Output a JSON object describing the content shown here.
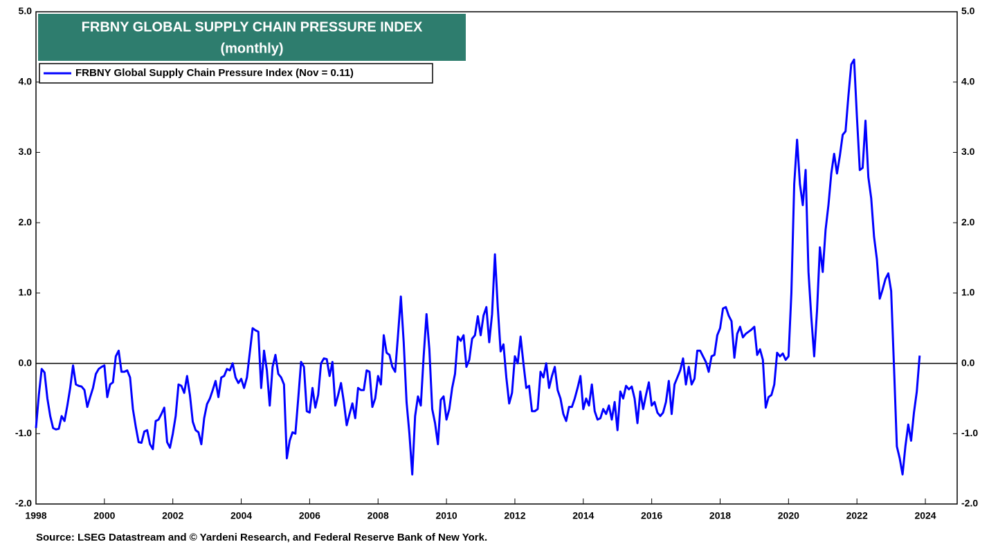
{
  "chart_data": {
    "type": "line",
    "title": "FRBNY GLOBAL SUPPLY CHAIN PRESSURE INDEX",
    "subtitle": "(monthly)",
    "source": "Source: LSEG Datastream and © Yardeni Research, and Federal Reserve Bank of New York.",
    "legend": "upper left",
    "xlim": [
      1998,
      2024.93
    ],
    "xticks": [
      1998,
      2000,
      2002,
      2004,
      2006,
      2008,
      2010,
      2012,
      2014,
      2016,
      2018,
      2020,
      2022,
      2024
    ],
    "ylim": [
      -2,
      5
    ],
    "yticks": [
      {
        "value": -2,
        "label": "-2.0"
      },
      {
        "value": -1,
        "label": "-1.0"
      },
      {
        "value": 0,
        "label": "0.0"
      },
      {
        "value": 1,
        "label": "1.0"
      },
      {
        "value": 2,
        "label": "2.0"
      },
      {
        "value": 3,
        "label": "3.0"
      },
      {
        "value": 4,
        "label": "4.0"
      },
      {
        "value": 5,
        "label": "5.0"
      }
    ],
    "y2lim": [
      -2,
      5
    ],
    "y2ticks": [
      {
        "value": -2,
        "label": "-2.0"
      },
      {
        "value": -1,
        "label": "-1.0"
      },
      {
        "value": 0,
        "label": "0.0"
      },
      {
        "value": 1,
        "label": "1.0"
      },
      {
        "value": 2,
        "label": "2.0"
      },
      {
        "value": 3,
        "label": "3.0"
      },
      {
        "value": 4,
        "label": "4.0"
      },
      {
        "value": 5,
        "label": "5.0"
      }
    ],
    "x": [
      "1998-01",
      "1998-02",
      "1998-03",
      "1998-04",
      "1998-05",
      "1998-06",
      "1998-07",
      "1998-08",
      "1998-09",
      "1998-10",
      "1998-11",
      "1998-12",
      "1999-01",
      "1999-02",
      "1999-03",
      "1999-04",
      "1999-05",
      "1999-06",
      "1999-07",
      "1999-08",
      "1999-09",
      "1999-10",
      "1999-11",
      "1999-12",
      "2000-01",
      "2000-02",
      "2000-03",
      "2000-04",
      "2000-05",
      "2000-06",
      "2000-07",
      "2000-08",
      "2000-09",
      "2000-10",
      "2000-11",
      "2000-12",
      "2001-01",
      "2001-02",
      "2001-03",
      "2001-04",
      "2001-05",
      "2001-06",
      "2001-07",
      "2001-08",
      "2001-09",
      "2001-10",
      "2001-11",
      "2001-12",
      "2002-01",
      "2002-02",
      "2002-03",
      "2002-04",
      "2002-05",
      "2002-06",
      "2002-07",
      "2002-08",
      "2002-09",
      "2002-10",
      "2002-11",
      "2002-12",
      "2003-01",
      "2003-02",
      "2003-03",
      "2003-04",
      "2003-05",
      "2003-06",
      "2003-07",
      "2003-08",
      "2003-09",
      "2003-10",
      "2003-11",
      "2003-12",
      "2004-01",
      "2004-02",
      "2004-03",
      "2004-04",
      "2004-05",
      "2004-06",
      "2004-07",
      "2004-08",
      "2004-09",
      "2004-10",
      "2004-11",
      "2004-12",
      "2005-01",
      "2005-02",
      "2005-03",
      "2005-04",
      "2005-05",
      "2005-06",
      "2005-07",
      "2005-08",
      "2005-09",
      "2005-10",
      "2005-11",
      "2005-12",
      "2006-01",
      "2006-02",
      "2006-03",
      "2006-04",
      "2006-05",
      "2006-06",
      "2006-07",
      "2006-08",
      "2006-09",
      "2006-10",
      "2006-11",
      "2006-12",
      "2007-01",
      "2007-02",
      "2007-03",
      "2007-04",
      "2007-05",
      "2007-06",
      "2007-07",
      "2007-08",
      "2007-09",
      "2007-10",
      "2007-11",
      "2007-12",
      "2008-01",
      "2008-02",
      "2008-03",
      "2008-04",
      "2008-05",
      "2008-06",
      "2008-07",
      "2008-08",
      "2008-09",
      "2008-10",
      "2008-11",
      "2008-12",
      "2009-01",
      "2009-02",
      "2009-03",
      "2009-04",
      "2009-05",
      "2009-06",
      "2009-07",
      "2009-08",
      "2009-09",
      "2009-10",
      "2009-11",
      "2009-12",
      "2010-01",
      "2010-02",
      "2010-03",
      "2010-04",
      "2010-05",
      "2010-06",
      "2010-07",
      "2010-08",
      "2010-09",
      "2010-10",
      "2010-11",
      "2010-12",
      "2011-01",
      "2011-02",
      "2011-03",
      "2011-04",
      "2011-05",
      "2011-06",
      "2011-07",
      "2011-08",
      "2011-09",
      "2011-10",
      "2011-11",
      "2011-12",
      "2012-01",
      "2012-02",
      "2012-03",
      "2012-04",
      "2012-05",
      "2012-06",
      "2012-07",
      "2012-08",
      "2012-09",
      "2012-10",
      "2012-11",
      "2012-12",
      "2013-01",
      "2013-02",
      "2013-03",
      "2013-04",
      "2013-05",
      "2013-06",
      "2013-07",
      "2013-08",
      "2013-09",
      "2013-10",
      "2013-11",
      "2013-12",
      "2014-01",
      "2014-02",
      "2014-03",
      "2014-04",
      "2014-05",
      "2014-06",
      "2014-07",
      "2014-08",
      "2014-09",
      "2014-10",
      "2014-11",
      "2014-12",
      "2015-01",
      "2015-02",
      "2015-03",
      "2015-04",
      "2015-05",
      "2015-06",
      "2015-07",
      "2015-08",
      "2015-09",
      "2015-10",
      "2015-11",
      "2015-12",
      "2016-01",
      "2016-02",
      "2016-03",
      "2016-04",
      "2016-05",
      "2016-06",
      "2016-07",
      "2016-08",
      "2016-09",
      "2016-10",
      "2016-11",
      "2016-12",
      "2017-01",
      "2017-02",
      "2017-03",
      "2017-04",
      "2017-05",
      "2017-06",
      "2017-07",
      "2017-08",
      "2017-09",
      "2017-10",
      "2017-11",
      "2017-12",
      "2018-01",
      "2018-02",
      "2018-03",
      "2018-04",
      "2018-05",
      "2018-06",
      "2018-07",
      "2018-08",
      "2018-09",
      "2018-10",
      "2018-11",
      "2018-12",
      "2019-01",
      "2019-02",
      "2019-03",
      "2019-04",
      "2019-05",
      "2019-06",
      "2019-07",
      "2019-08",
      "2019-09",
      "2019-10",
      "2019-11",
      "2019-12",
      "2020-01",
      "2020-02",
      "2020-03",
      "2020-04",
      "2020-05",
      "2020-06",
      "2020-07",
      "2020-08",
      "2020-09",
      "2020-10",
      "2020-11",
      "2020-12",
      "2021-01",
      "2021-02",
      "2021-03",
      "2021-04",
      "2021-05",
      "2021-06",
      "2021-07",
      "2021-08",
      "2021-09",
      "2021-10",
      "2021-11",
      "2021-12",
      "2022-01",
      "2022-02",
      "2022-03",
      "2022-04",
      "2022-05",
      "2022-06",
      "2022-07",
      "2022-08",
      "2022-09",
      "2022-10",
      "2022-11",
      "2022-12",
      "2023-01",
      "2023-02",
      "2023-03",
      "2023-04",
      "2023-05",
      "2023-06",
      "2023-07",
      "2023-08",
      "2023-09",
      "2023-10",
      "2023-11"
    ],
    "series": [
      {
        "name": "FRBNY Global Supply Chain Pressure Index (Nov = 0.11)",
        "color": "#0000ff",
        "values": [
          -0.92,
          -0.45,
          -0.08,
          -0.13,
          -0.5,
          -0.75,
          -0.92,
          -0.94,
          -0.93,
          -0.75,
          -0.82,
          -0.6,
          -0.35,
          -0.03,
          -0.3,
          -0.32,
          -0.33,
          -0.38,
          -0.62,
          -0.48,
          -0.35,
          -0.15,
          -0.08,
          -0.05,
          -0.03,
          -0.48,
          -0.3,
          -0.27,
          0.1,
          0.18,
          -0.12,
          -0.12,
          -0.1,
          -0.2,
          -0.65,
          -0.9,
          -1.12,
          -1.13,
          -0.97,
          -0.95,
          -1.15,
          -1.22,
          -0.82,
          -0.8,
          -0.72,
          -0.63,
          -1.12,
          -1.2,
          -1.0,
          -0.75,
          -0.3,
          -0.32,
          -0.42,
          -0.18,
          -0.45,
          -0.83,
          -0.95,
          -0.98,
          -1.15,
          -0.78,
          -0.58,
          -0.5,
          -0.38,
          -0.25,
          -0.48,
          -0.2,
          -0.18,
          -0.08,
          -0.1,
          0.0,
          -0.2,
          -0.28,
          -0.22,
          -0.35,
          -0.2,
          0.15,
          0.5,
          0.47,
          0.45,
          -0.35,
          0.18,
          -0.1,
          -0.6,
          -0.05,
          0.12,
          -0.15,
          -0.2,
          -0.3,
          -1.35,
          -1.1,
          -0.98,
          -1.0,
          -0.5,
          0.02,
          -0.05,
          -0.68,
          -0.7,
          -0.35,
          -0.63,
          -0.45,
          0.0,
          0.07,
          0.06,
          -0.18,
          0.02,
          -0.6,
          -0.45,
          -0.28,
          -0.55,
          -0.88,
          -0.72,
          -0.57,
          -0.78,
          -0.35,
          -0.38,
          -0.38,
          -0.1,
          -0.12,
          -0.62,
          -0.5,
          -0.18,
          -0.3,
          0.4,
          0.15,
          0.12,
          -0.05,
          -0.12,
          0.4,
          0.95,
          0.3,
          -0.55,
          -1.0,
          -1.58,
          -0.75,
          -0.47,
          -0.6,
          0.1,
          0.7,
          0.2,
          -0.65,
          -0.85,
          -1.15,
          -0.52,
          -0.47,
          -0.8,
          -0.65,
          -0.35,
          -0.15,
          0.38,
          0.32,
          0.4,
          -0.05,
          0.05,
          0.35,
          0.4,
          0.67,
          0.4,
          0.68,
          0.8,
          0.3,
          0.7,
          1.55,
          0.8,
          0.17,
          0.27,
          -0.2,
          -0.57,
          -0.42,
          0.1,
          0.0,
          0.38,
          0.0,
          -0.35,
          -0.32,
          -0.68,
          -0.68,
          -0.65,
          -0.12,
          -0.2,
          0.0,
          -0.35,
          -0.18,
          -0.05,
          -0.38,
          -0.5,
          -0.72,
          -0.82,
          -0.62,
          -0.62,
          -0.5,
          -0.35,
          -0.18,
          -0.65,
          -0.5,
          -0.6,
          -0.3,
          -0.68,
          -0.8,
          -0.78,
          -0.65,
          -0.72,
          -0.6,
          -0.8,
          -0.55,
          -0.95,
          -0.4,
          -0.5,
          -0.32,
          -0.37,
          -0.33,
          -0.5,
          -0.85,
          -0.4,
          -0.65,
          -0.45,
          -0.27,
          -0.6,
          -0.55,
          -0.7,
          -0.75,
          -0.7,
          -0.55,
          -0.25,
          -0.72,
          -0.3,
          -0.2,
          -0.1,
          0.07,
          -0.3,
          -0.05,
          -0.3,
          -0.22,
          0.18,
          0.18,
          0.1,
          0.02,
          -0.12,
          0.1,
          0.12,
          0.4,
          0.5,
          0.78,
          0.8,
          0.68,
          0.6,
          0.08,
          0.42,
          0.52,
          0.37,
          0.42,
          0.45,
          0.48,
          0.52,
          0.12,
          0.2,
          0.05,
          -0.63,
          -0.48,
          -0.45,
          -0.3,
          0.15,
          0.1,
          0.14,
          0.05,
          0.1,
          1.0,
          2.55,
          3.18,
          2.55,
          2.25,
          2.75,
          1.3,
          0.65,
          0.1,
          0.75,
          1.65,
          1.3,
          1.9,
          2.25,
          2.7,
          2.98,
          2.7,
          2.95,
          3.25,
          3.3,
          3.8,
          4.25,
          4.32,
          3.5,
          2.75,
          2.78,
          3.45,
          2.65,
          2.35,
          1.8,
          1.48,
          0.92,
          1.05,
          1.2,
          1.28,
          1.03,
          -0.05,
          -1.18,
          -1.35,
          -1.58,
          -1.18,
          -0.87,
          -1.1,
          -0.7,
          -0.4,
          0.11
        ]
      }
    ]
  }
}
